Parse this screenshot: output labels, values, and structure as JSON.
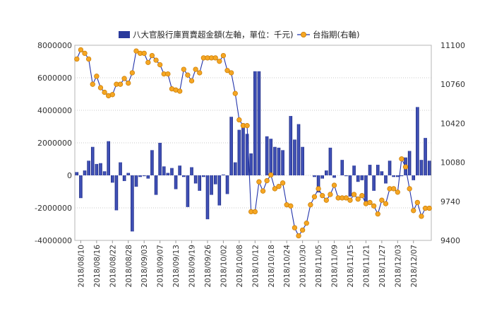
{
  "chart_data": {
    "type": "bar+line",
    "legend": {
      "position": "top-center",
      "bar_label": "八大官股行庫買賣超金額(左軸，單位：千元)",
      "line_label": "台指期(右軸)"
    },
    "left_axis": {
      "min": -4000000,
      "max": 8000000,
      "ticks": [
        -4000000,
        -2000000,
        0,
        2000000,
        4000000,
        6000000,
        8000000
      ]
    },
    "right_axis": {
      "min": 9400,
      "max": 11100,
      "ticks": [
        9400,
        9740,
        10080,
        10420,
        10760,
        11100
      ]
    },
    "x_tick_labels": [
      "2018/08/10",
      "2018/08/16",
      "2018/08/22",
      "2018/08/28",
      "2018/09/03",
      "2018/09/07",
      "2018/09/13",
      "2018/09/19",
      "2018/09/26",
      "2018/10/02",
      "2018/10/08",
      "2018/10/12",
      "2018/10/18",
      "2018/10/24",
      "2018/10/30",
      "2018/11/05",
      "2018/11/09",
      "2018/11/15",
      "2018/11/21",
      "2018/11/27",
      "2018/12/03",
      "2018/12/07"
    ],
    "x_tick_every": 4,
    "grid": {
      "horizontal": true,
      "style": "dotted"
    },
    "colors": {
      "bar": "#2a3a9c",
      "line": "#2233aa",
      "marker": "#f5a623",
      "marker_edge": "#c87a00"
    },
    "series": [
      {
        "name": "八大官股行庫買賣超金額(左軸，單位：千元)",
        "axis": "left",
        "kind": "bar",
        "values": [
          200000,
          -1400000,
          300000,
          900000,
          1750000,
          700000,
          750000,
          250000,
          2100000,
          -450000,
          -2150000,
          800000,
          -350000,
          150000,
          -3450000,
          -700000,
          -100000,
          -50000,
          -200000,
          1550000,
          -1200000,
          2000000,
          550000,
          150000,
          450000,
          -850000,
          600000,
          -100000,
          -1950000,
          500000,
          -500000,
          -950000,
          -100000,
          -2700000,
          -1200000,
          -550000,
          -1850000,
          50000,
          -1150000,
          3600000,
          800000,
          2800000,
          3200000,
          2550000,
          1350000,
          6400000,
          6400000,
          0,
          2400000,
          2250000,
          1750000,
          1700000,
          1550000,
          0,
          3650000,
          2200000,
          3150000,
          1750000,
          0,
          0,
          -100000,
          -1050000,
          -200000,
          300000,
          1700000,
          -150000,
          0,
          950000,
          -50000,
          -1300000,
          600000,
          -400000,
          -300000,
          -1700000,
          650000,
          -950000,
          650000,
          250000,
          -500000,
          900000,
          -100000,
          -100000,
          -50000,
          1100000,
          1500000,
          -300000,
          4200000,
          950000,
          2300000,
          900000
        ]
      },
      {
        "name": "台指期(右軸)",
        "axis": "right",
        "kind": "line",
        "values": [
          10980,
          11060,
          11030,
          10980,
          10760,
          10830,
          10730,
          10690,
          10660,
          10670,
          10760,
          10760,
          10810,
          10770,
          10860,
          11050,
          11030,
          11030,
          10950,
          11010,
          10970,
          10930,
          10850,
          10850,
          10720,
          10710,
          10700,
          10890,
          10840,
          10790,
          10890,
          10860,
          10990,
          10990,
          10990,
          10990,
          10960,
          11010,
          10880,
          10860,
          10680,
          10450,
          10400,
          10400,
          9650,
          9650,
          9910,
          9830,
          9920,
          9970,
          9850,
          9870,
          9900,
          9710,
          9700,
          9510,
          9440,
          9490,
          9550,
          9710,
          9780,
          9850,
          9790,
          9750,
          9800,
          9880,
          9770,
          9770,
          9770,
          9750,
          9800,
          9760,
          9790,
          9720,
          9730,
          9700,
          9630,
          9750,
          9720,
          9850,
          9850,
          9820,
          10110,
          10040,
          9850,
          9660,
          9730,
          9610,
          9680,
          9680
        ]
      }
    ]
  }
}
